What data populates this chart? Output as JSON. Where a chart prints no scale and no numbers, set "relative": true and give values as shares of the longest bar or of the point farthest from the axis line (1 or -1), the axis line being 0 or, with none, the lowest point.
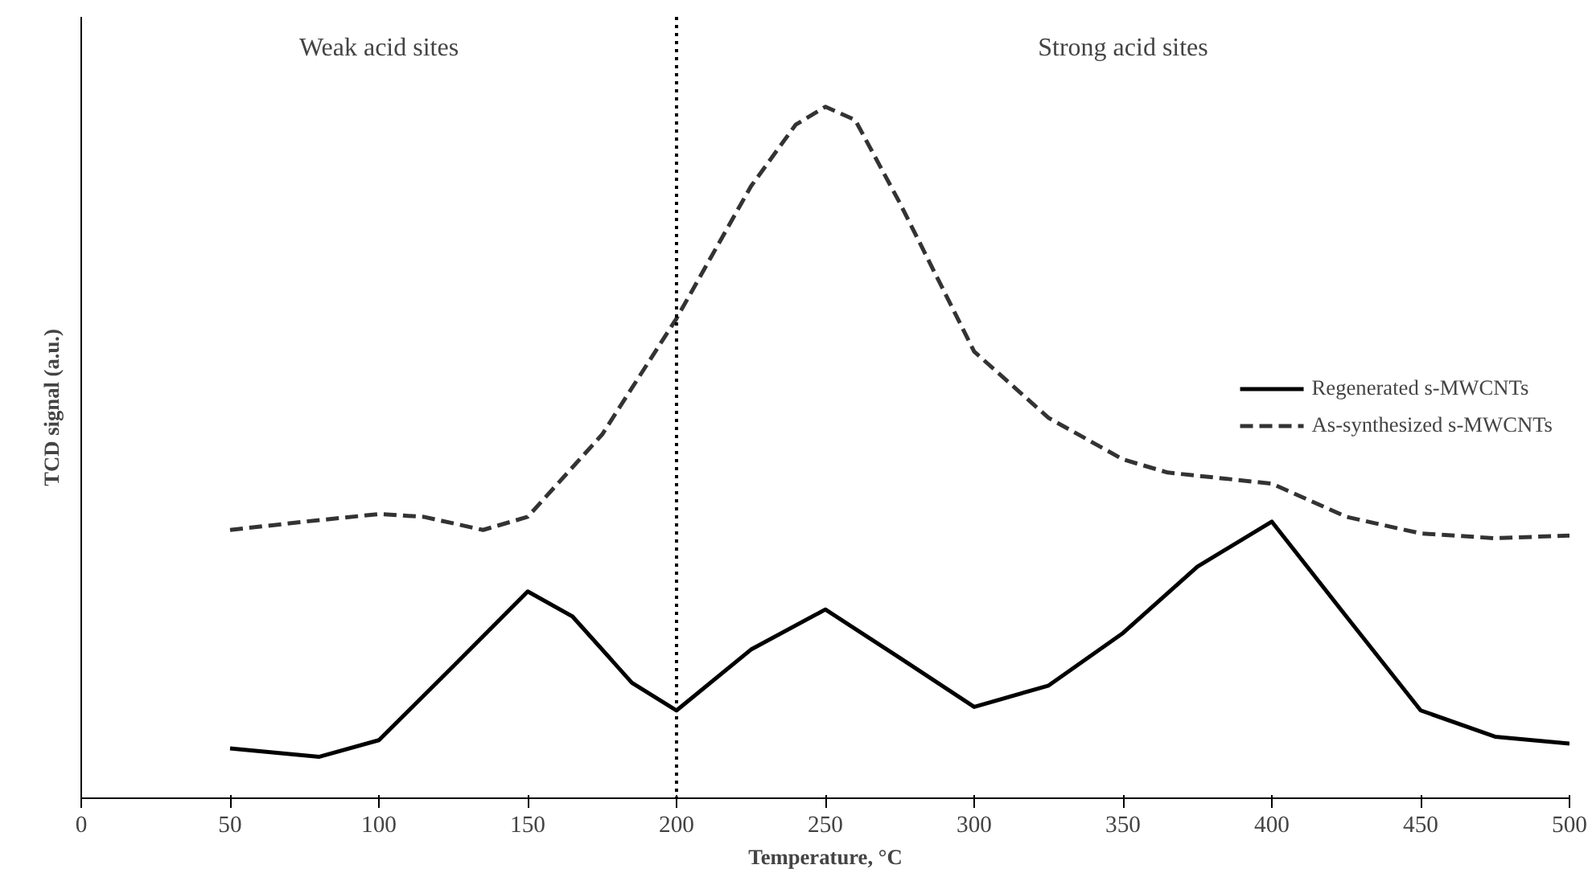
{
  "chart_data": {
    "type": "line",
    "relative": true,
    "xlabel": "Temperature, °C",
    "ylabel": "TCD signal (a.u.)",
    "xlim": [
      0,
      500
    ],
    "xticks": [
      0,
      50,
      100,
      150,
      200,
      250,
      300,
      350,
      400,
      450,
      500
    ],
    "tick_labels": "x",
    "grid": false,
    "legend": "right",
    "annotations": [
      "Weak acid sites",
      "Strong acid sites"
    ],
    "ref_lines": [
      {
        "axis": "x",
        "value": 200,
        "line_style": "dotted",
        "color": "#000000"
      }
    ],
    "series": [
      {
        "name": "Regenerated s-MWCNTs",
        "color": "#000000",
        "line_style": "solid",
        "x": [
          50,
          80,
          100,
          125,
          150,
          165,
          185,
          200,
          225,
          250,
          275,
          300,
          325,
          350,
          375,
          400,
          425,
          450,
          475,
          500
        ],
        "values": [
          0.072,
          0.06,
          0.084,
          0.191,
          0.299,
          0.263,
          0.167,
          0.127,
          0.215,
          0.273,
          0.203,
          0.132,
          0.163,
          0.239,
          0.335,
          0.4,
          0.263,
          0.127,
          0.089,
          0.079
        ]
      },
      {
        "name": "As-synthesized s-MWCNTs",
        "color": "#333333",
        "line_style": "dashed",
        "x": [
          50,
          75,
          100,
          115,
          135,
          150,
          175,
          200,
          225,
          240,
          250,
          260,
          275,
          300,
          325,
          350,
          365,
          400,
          425,
          450,
          475,
          500
        ],
        "values": [
          0.388,
          0.4,
          0.411,
          0.407,
          0.388,
          0.407,
          0.526,
          0.694,
          0.885,
          0.974,
          1.0,
          0.981,
          0.861,
          0.646,
          0.55,
          0.49,
          0.471,
          0.455,
          0.407,
          0.383,
          0.376,
          0.38
        ]
      }
    ]
  }
}
